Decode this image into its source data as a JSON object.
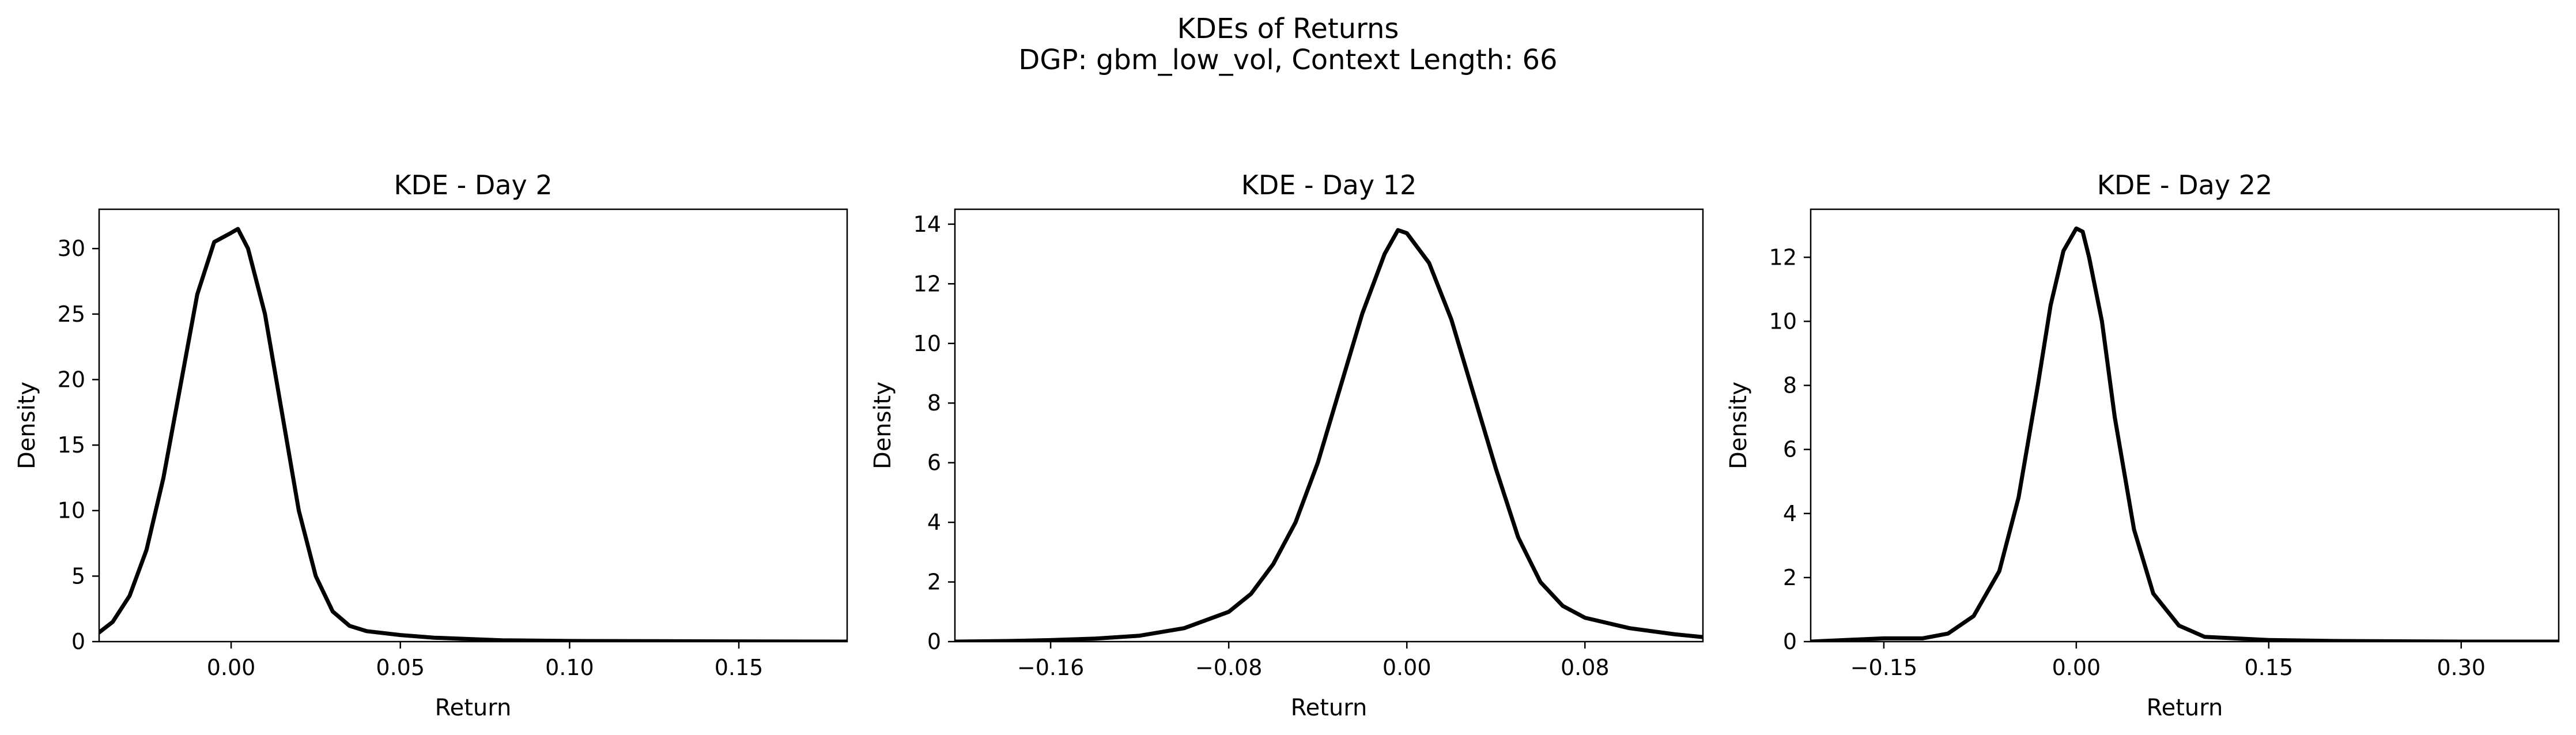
{
  "suptitle": "KDEs of Returns",
  "subtitle": "DGP: gbm_low_vol, Context Length: 66",
  "colors": {
    "line": "#000000",
    "axes": "#000000",
    "background": "#ffffff"
  },
  "chart_data": [
    {
      "type": "line",
      "title": "KDE - Day 2",
      "xlabel": "Return",
      "ylabel": "Density",
      "xlim": [
        -0.039,
        0.182
      ],
      "ylim": [
        0,
        33.0
      ],
      "xticks": [
        0.0,
        0.05,
        0.1,
        0.15
      ],
      "xticklabels": [
        "0.00",
        "0.05",
        "0.10",
        "0.15"
      ],
      "yticks": [
        0,
        5,
        10,
        15,
        20,
        25,
        30
      ],
      "yticklabels": [
        "0",
        "5",
        "10",
        "15",
        "20",
        "25",
        "30"
      ],
      "grid": false,
      "series": [
        {
          "x": [
            -0.039,
            -0.035,
            -0.03,
            -0.025,
            -0.02,
            -0.015,
            -0.01,
            -0.005,
            0.0,
            0.002,
            0.005,
            0.01,
            0.015,
            0.02,
            0.025,
            0.03,
            0.035,
            0.04,
            0.05,
            0.06,
            0.08,
            0.1,
            0.14,
            0.182
          ],
          "y": [
            0.7,
            1.5,
            3.5,
            7.0,
            12.5,
            19.5,
            26.5,
            30.5,
            31.2,
            31.5,
            30.0,
            25.0,
            17.5,
            10.0,
            5.0,
            2.3,
            1.2,
            0.8,
            0.5,
            0.3,
            0.1,
            0.05,
            0.02,
            0.0
          ]
        }
      ]
    },
    {
      "type": "line",
      "title": "KDE - Day 12",
      "xlabel": "Return",
      "ylabel": "Density",
      "xlim": [
        -0.203,
        0.133
      ],
      "ylim": [
        0,
        14.5
      ],
      "xticks": [
        -0.16,
        -0.08,
        0.0,
        0.08
      ],
      "xticklabels": [
        "−0.16",
        "−0.08",
        "0.00",
        "0.08"
      ],
      "yticks": [
        0,
        2,
        4,
        6,
        8,
        10,
        12,
        14
      ],
      "yticklabels": [
        "0",
        "2",
        "4",
        "6",
        "8",
        "10",
        "12",
        "14"
      ],
      "grid": false,
      "series": [
        {
          "x": [
            -0.203,
            -0.18,
            -0.16,
            -0.14,
            -0.12,
            -0.1,
            -0.08,
            -0.07,
            -0.06,
            -0.05,
            -0.04,
            -0.03,
            -0.02,
            -0.01,
            -0.004,
            0.0,
            0.01,
            0.02,
            0.03,
            0.04,
            0.05,
            0.06,
            0.07,
            0.08,
            0.1,
            0.12,
            0.133
          ],
          "y": [
            0.0,
            0.02,
            0.05,
            0.1,
            0.2,
            0.45,
            1.0,
            1.6,
            2.6,
            4.0,
            6.0,
            8.5,
            11.0,
            13.0,
            13.8,
            13.7,
            12.7,
            10.8,
            8.3,
            5.8,
            3.5,
            2.0,
            1.2,
            0.8,
            0.45,
            0.25,
            0.15
          ]
        }
      ]
    },
    {
      "type": "line",
      "title": "KDE - Day 22",
      "xlabel": "Return",
      "ylabel": "Density",
      "xlim": [
        -0.207,
        0.376
      ],
      "ylim": [
        0,
        13.5
      ],
      "xticks": [
        -0.15,
        0.0,
        0.15,
        0.3
      ],
      "xticklabels": [
        "−0.15",
        "0.00",
        "0.15",
        "0.30"
      ],
      "yticks": [
        0,
        2,
        4,
        6,
        8,
        10,
        12
      ],
      "yticklabels": [
        "0",
        "2",
        "4",
        "6",
        "8",
        "10",
        "12"
      ],
      "grid": false,
      "series": [
        {
          "x": [
            -0.207,
            -0.18,
            -0.15,
            -0.12,
            -0.1,
            -0.08,
            -0.06,
            -0.045,
            -0.03,
            -0.02,
            -0.01,
            0.0,
            0.005,
            0.01,
            0.02,
            0.03,
            0.045,
            0.06,
            0.08,
            0.1,
            0.15,
            0.2,
            0.3,
            0.376
          ],
          "y": [
            0.0,
            0.05,
            0.1,
            0.1,
            0.25,
            0.8,
            2.2,
            4.5,
            8.0,
            10.5,
            12.2,
            12.9,
            12.8,
            12.0,
            10.0,
            7.0,
            3.5,
            1.5,
            0.5,
            0.15,
            0.05,
            0.02,
            0.0,
            0.0
          ]
        }
      ]
    }
  ]
}
